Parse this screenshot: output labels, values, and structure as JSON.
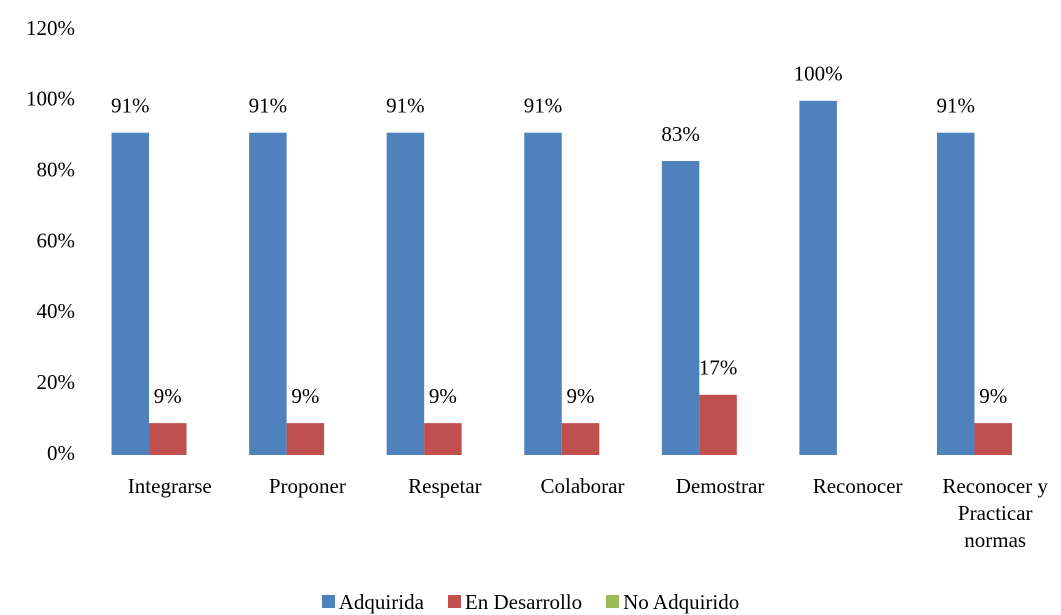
{
  "chart_data": {
    "type": "bar",
    "categories": [
      "Integrarse",
      "Proponer",
      "Respetar",
      "Colaborar",
      "Demostrar",
      "Reconocer",
      "Reconocer y Practicar normas"
    ],
    "series": [
      {
        "name": "Adquirida",
        "color": "#4f81bd",
        "values": [
          91,
          91,
          91,
          91,
          83,
          100,
          91
        ],
        "value_labels": [
          "91%",
          "91%",
          "91%",
          "91%",
          "83%",
          "100%",
          "91%"
        ]
      },
      {
        "name": "En Desarrollo",
        "color": "#c0504d",
        "values": [
          9,
          9,
          9,
          9,
          17,
          0,
          9
        ],
        "value_labels": [
          "9%",
          "9%",
          "9%",
          "9%",
          "17%",
          null,
          "9%"
        ]
      },
      {
        "name": "No Adquirido",
        "color": "#9bbb59",
        "values": [
          0,
          0,
          0,
          0,
          0,
          0,
          0
        ]
      }
    ],
    "ylim": [
      0,
      120
    ],
    "yticks": [
      {
        "value": 0,
        "label": "0%"
      },
      {
        "value": 20,
        "label": "20%"
      },
      {
        "value": 40,
        "label": "40%"
      },
      {
        "value": 60,
        "label": "60%"
      },
      {
        "value": 80,
        "label": "80%"
      },
      {
        "value": 100,
        "label": "100%"
      },
      {
        "value": 120,
        "label": "120%"
      }
    ],
    "grid": false,
    "legend": "bottom"
  }
}
